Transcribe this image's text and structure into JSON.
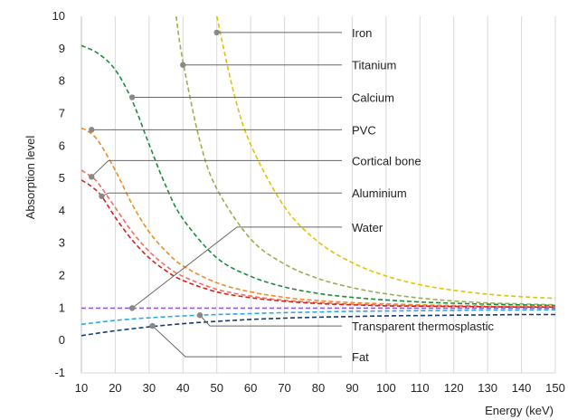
{
  "chart_data": {
    "type": "line",
    "title": "",
    "xlabel": "Energy (keV)",
    "ylabel": "Absorption level",
    "xlim": [
      10,
      150
    ],
    "ylim": [
      -1,
      10
    ],
    "xticks": [
      10,
      20,
      30,
      40,
      50,
      60,
      70,
      80,
      90,
      100,
      110,
      120,
      130,
      140,
      150
    ],
    "yticks": [
      -1,
      0,
      1,
      2,
      3,
      4,
      5,
      6,
      7,
      8,
      9,
      10
    ],
    "grid": "vertical",
    "series": [
      {
        "name": "Iron",
        "color": "#e0c400",
        "x": [
          50,
          55,
          60,
          70,
          80,
          90,
          100,
          110,
          120,
          130,
          140,
          150
        ],
        "y": [
          10.0,
          7.65,
          6.05,
          4.12,
          3.04,
          2.4,
          1.99,
          1.72,
          1.55,
          1.43,
          1.35,
          1.3
        ]
      },
      {
        "name": "Titanium",
        "color": "#9aae50",
        "x": [
          38,
          40,
          45,
          50,
          60,
          70,
          80,
          90,
          100,
          110,
          120,
          130,
          140,
          150
        ],
        "y": [
          10.0,
          8.6,
          6.15,
          4.68,
          3.13,
          2.36,
          1.91,
          1.63,
          1.44,
          1.31,
          1.22,
          1.16,
          1.13,
          1.1
        ]
      },
      {
        "name": "Calcium",
        "color": "#1e8a3c",
        "x": [
          10,
          15,
          20,
          25,
          30,
          35,
          40,
          50,
          60,
          70,
          80,
          90,
          100,
          110,
          120,
          130,
          140,
          150
        ],
        "y": [
          9.1,
          8.85,
          8.35,
          7.4,
          6.05,
          4.75,
          3.75,
          2.55,
          1.98,
          1.65,
          1.45,
          1.33,
          1.25,
          1.19,
          1.15,
          1.12,
          1.1,
          1.08
        ]
      },
      {
        "name": "PVC",
        "color": "#f08a24",
        "x": [
          10,
          12,
          15,
          20,
          25,
          30,
          35,
          40,
          50,
          60,
          70,
          80,
          90,
          100,
          110,
          120,
          130,
          140,
          150
        ],
        "y": [
          6.55,
          6.45,
          6.15,
          5.25,
          4.2,
          3.35,
          2.75,
          2.3,
          1.78,
          1.5,
          1.33,
          1.23,
          1.17,
          1.13,
          1.1,
          1.08,
          1.06,
          1.05,
          1.05
        ]
      },
      {
        "name": "Cortical bone",
        "color": "#f07060",
        "x": [
          10,
          13,
          15,
          20,
          25,
          30,
          35,
          40,
          50,
          60,
          70,
          80,
          90,
          100,
          110,
          120,
          130,
          140,
          150
        ],
        "y": [
          5.25,
          5.05,
          4.85,
          4.1,
          3.35,
          2.75,
          2.3,
          1.98,
          1.58,
          1.37,
          1.24,
          1.17,
          1.12,
          1.09,
          1.07,
          1.06,
          1.05,
          1.04,
          1.04
        ]
      },
      {
        "name": "Aluminium",
        "color": "#d82020",
        "x": [
          10,
          13,
          16,
          20,
          25,
          30,
          35,
          40,
          50,
          60,
          70,
          80,
          90,
          100,
          110,
          120,
          130,
          140,
          150
        ],
        "y": [
          4.95,
          4.75,
          4.45,
          3.8,
          3.1,
          2.55,
          2.15,
          1.85,
          1.5,
          1.32,
          1.21,
          1.14,
          1.1,
          1.07,
          1.06,
          1.05,
          1.04,
          1.03,
          1.03
        ]
      },
      {
        "name": "Water",
        "color": "#9060c0",
        "x": [
          10,
          150
        ],
        "y": [
          1.0,
          1.0
        ]
      },
      {
        "name": "Transparent thermosplastic",
        "color": "#30a8dc",
        "x": [
          10,
          20,
          30,
          40,
          50,
          60,
          70,
          80,
          90,
          100,
          110,
          120,
          130,
          140,
          150
        ],
        "y": [
          0.5,
          0.62,
          0.7,
          0.76,
          0.8,
          0.83,
          0.86,
          0.88,
          0.9,
          0.91,
          0.92,
          0.93,
          0.94,
          0.94,
          0.95
        ]
      },
      {
        "name": "Fat",
        "color": "#103c78",
        "x": [
          10,
          20,
          30,
          40,
          50,
          60,
          70,
          80,
          90,
          100,
          110,
          120,
          130,
          140,
          150
        ],
        "y": [
          0.15,
          0.3,
          0.42,
          0.52,
          0.59,
          0.65,
          0.69,
          0.72,
          0.74,
          0.76,
          0.77,
          0.78,
          0.79,
          0.8,
          0.8
        ]
      }
    ],
    "annotations": [
      {
        "label": "Iron",
        "point": [
          50,
          9.5
        ],
        "label_y": 9.5
      },
      {
        "label": "Titanium",
        "point": [
          40,
          8.5
        ],
        "label_y": 8.5
      },
      {
        "label": "Calcium",
        "point": [
          25,
          7.5
        ],
        "label_y": 7.5
      },
      {
        "label": "PVC",
        "point": [
          13,
          6.5
        ],
        "label_y": 6.5
      },
      {
        "label": "Cortical bone",
        "point": [
          13,
          5.05
        ],
        "label_y": 5.55
      },
      {
        "label": "Aluminium",
        "point": [
          16,
          4.45
        ],
        "label_y": 4.55
      },
      {
        "label": "Water",
        "point": [
          25,
          1.0
        ],
        "label_y": 3.5
      },
      {
        "label": "Transparent thermosplastic",
        "point": [
          45,
          0.78
        ],
        "label_y": 0.45
      },
      {
        "label": "Fat",
        "point": [
          31,
          0.45
        ],
        "label_y": -0.5
      }
    ]
  }
}
